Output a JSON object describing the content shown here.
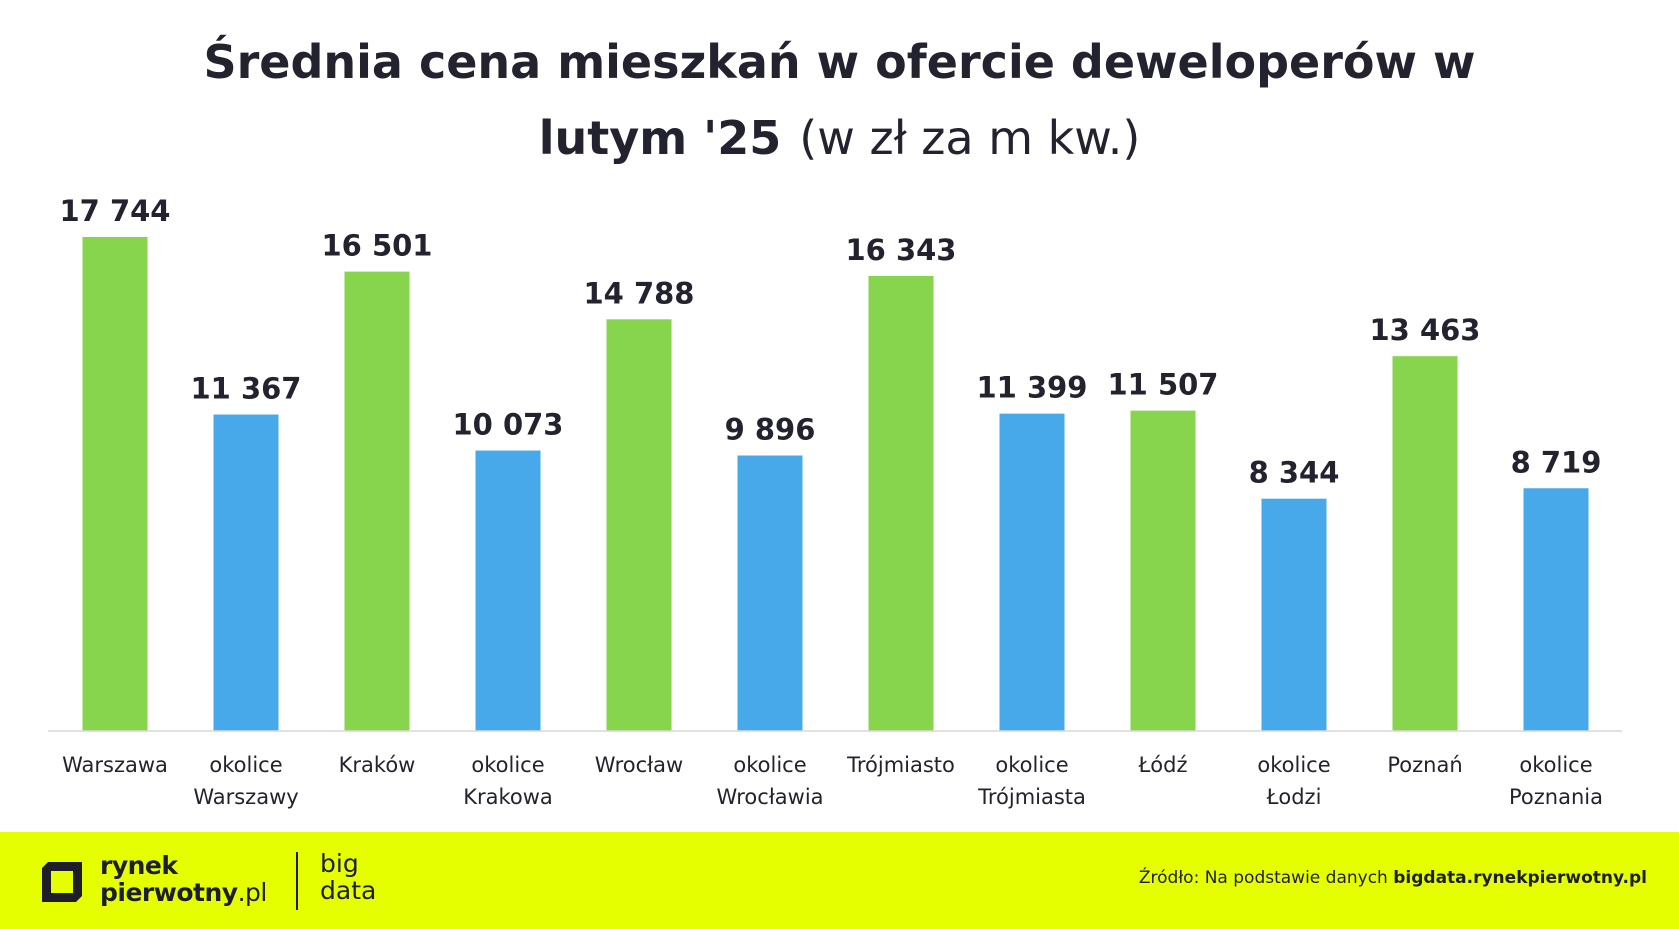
{
  "chart_data": {
    "type": "bar",
    "title": "Średnia cena mieszkań w ofercie deweloperów w lutym '25",
    "title_line1": "Średnia cena mieszkań w ofercie deweloperów w",
    "title_line2": "lutym '25",
    "unit": "(w zł za m kw.)",
    "categories": [
      [
        "Warszawa"
      ],
      [
        "okolice",
        "Warszawy"
      ],
      [
        "Kraków"
      ],
      [
        "okolice",
        "Krakowa"
      ],
      [
        "Wrocław"
      ],
      [
        "okolice",
        "Wrocławia"
      ],
      [
        "Trójmiasto"
      ],
      [
        "okolice",
        "Trójmiasta"
      ],
      [
        "Łódź"
      ],
      [
        "okolice",
        "Łodzi"
      ],
      [
        "Poznań"
      ],
      [
        "okolice",
        "Poznania"
      ]
    ],
    "values": [
      17744,
      11367,
      16501,
      10073,
      14788,
      9896,
      16343,
      11399,
      11507,
      8344,
      13463,
      8719
    ],
    "value_labels": [
      "17 744",
      "11 367",
      "16 501",
      "10 073",
      "14 788",
      "9 896",
      "16 343",
      "11 399",
      "11 507",
      "8 344",
      "13 463",
      "8 719"
    ],
    "bar_colors": [
      "#86d54d",
      "#47a9ea",
      "#86d54d",
      "#47a9ea",
      "#86d54d",
      "#47a9ea",
      "#86d54d",
      "#47a9ea",
      "#86d54d",
      "#47a9ea",
      "#86d54d",
      "#47a9ea"
    ],
    "ylim": [
      0,
      17744
    ],
    "grid": false,
    "legend": "none"
  },
  "footer": {
    "logo_line1": "rynek",
    "logo_line2_main": "pierwotny",
    "logo_line2_suffix": ".pl",
    "logo_big_line1": "big",
    "logo_big_line2": "data",
    "source_prefix": "Źródło: Na podstawie danych ",
    "source_link": "bigdata.rynekpierwotny.pl",
    "background_color": "#e6ff00"
  }
}
